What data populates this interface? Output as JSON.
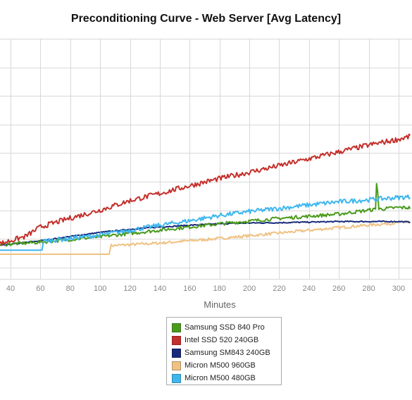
{
  "chart_data": {
    "type": "line",
    "title": "Preconditioning Curve - Web Server [Avg Latency]",
    "xlabel": "Minutes",
    "ylabel": "",
    "x_ticks": [
      40,
      60,
      80,
      100,
      120,
      140,
      160,
      180,
      200,
      220,
      240,
      260,
      280,
      300
    ],
    "xlim": [
      31,
      308
    ],
    "grid": true,
    "legend_position": "bottom-center",
    "series": [
      {
        "name": "Samsung SSD 840 Pro",
        "color": "#4a9a1c",
        "noise": 0.06,
        "spikes": [
          [
            285,
            0.95
          ],
          [
            286,
            0.6
          ]
        ],
        "points": [
          [
            31,
            0.06
          ],
          [
            60,
            0.15
          ],
          [
            100,
            0.34
          ],
          [
            140,
            0.57
          ],
          [
            180,
            0.79
          ],
          [
            220,
            0.98
          ],
          [
            260,
            1.13
          ],
          [
            280,
            1.27
          ],
          [
            300,
            1.36
          ],
          [
            308,
            1.35
          ]
        ]
      },
      {
        "name": "Intel SSD 520 240GB",
        "color": "#c4302b",
        "noise": 0.09,
        "points": [
          [
            31,
            0.07
          ],
          [
            50,
            0.35
          ],
          [
            60,
            0.68
          ],
          [
            80,
            0.99
          ],
          [
            100,
            1.27
          ],
          [
            120,
            1.6
          ],
          [
            140,
            1.85
          ],
          [
            160,
            2.12
          ],
          [
            180,
            2.37
          ],
          [
            200,
            2.59
          ],
          [
            220,
            2.82
          ],
          [
            240,
            3.06
          ],
          [
            260,
            3.3
          ],
          [
            280,
            3.54
          ],
          [
            300,
            3.74
          ],
          [
            308,
            3.84
          ]
        ]
      },
      {
        "name": "Samsung SM843 240GB",
        "color": "#172a7c",
        "noise": 0.02,
        "points": [
          [
            31,
            0.02
          ],
          [
            60,
            0.2
          ],
          [
            80,
            0.35
          ],
          [
            100,
            0.49
          ],
          [
            120,
            0.6
          ],
          [
            140,
            0.68
          ],
          [
            160,
            0.74
          ],
          [
            180,
            0.79
          ],
          [
            200,
            0.82
          ],
          [
            220,
            0.83
          ],
          [
            260,
            0.87
          ],
          [
            300,
            0.87
          ],
          [
            308,
            0.85
          ]
        ]
      },
      {
        "name": "Micron M500 960GB",
        "color": "#efc283",
        "noise": 0.05,
        "points": [
          [
            31,
            -0.27
          ],
          [
            106,
            -0.27
          ],
          [
            107,
            0.03
          ],
          [
            108,
            0.03
          ],
          [
            140,
            0.12
          ],
          [
            180,
            0.28
          ],
          [
            220,
            0.47
          ],
          [
            260,
            0.66
          ],
          [
            300,
            0.83
          ],
          [
            308,
            0.86
          ]
        ]
      },
      {
        "name": "Micron M500 480GB",
        "color": "#3fb7ee",
        "noise": 0.08,
        "points": [
          [
            31,
            -0.13
          ],
          [
            61,
            -0.13
          ],
          [
            62,
            0.19
          ],
          [
            80,
            0.28
          ],
          [
            100,
            0.4
          ],
          [
            120,
            0.57
          ],
          [
            140,
            0.74
          ],
          [
            160,
            0.9
          ],
          [
            180,
            1.08
          ],
          [
            200,
            1.22
          ],
          [
            220,
            1.33
          ],
          [
            240,
            1.45
          ],
          [
            260,
            1.56
          ],
          [
            280,
            1.63
          ],
          [
            300,
            1.71
          ],
          [
            308,
            1.73
          ]
        ]
      }
    ]
  }
}
